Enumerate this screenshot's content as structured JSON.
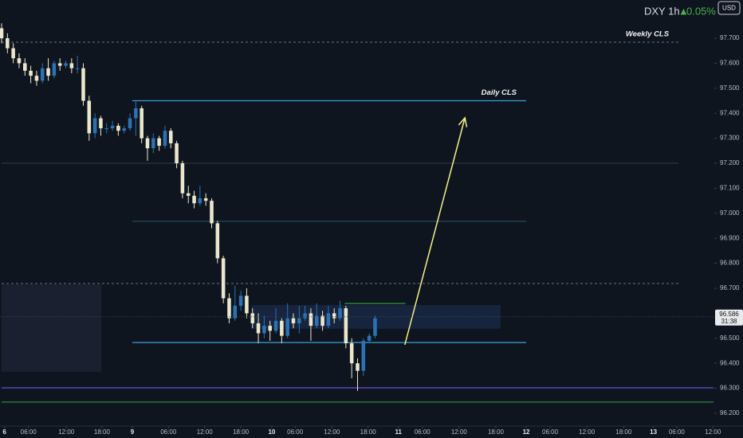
{
  "chart_data": {
    "type": "candlestick",
    "title": "DXY 1h",
    "change": "0.05%",
    "currency": "USD",
    "up_color": "#2b72b5",
    "down_color": "#ebe7cc",
    "grid": false,
    "xlim": [
      0,
      122
    ],
    "ylim": [
      96.149,
      97.853
    ],
    "yticks": [
      {
        "value": 96.2,
        "label": "96.200"
      },
      {
        "value": 96.3,
        "label": "96.300"
      },
      {
        "value": 96.4,
        "label": "96.400"
      },
      {
        "value": 96.5,
        "label": "96.500"
      },
      {
        "value": 96.7,
        "label": "96.700"
      },
      {
        "value": 96.8,
        "label": "96.800"
      },
      {
        "value": 96.9,
        "label": "96.900"
      },
      {
        "value": 97.0,
        "label": "97.000"
      },
      {
        "value": 97.1,
        "label": "97.100"
      },
      {
        "value": 97.2,
        "label": "97.200"
      },
      {
        "value": 97.3,
        "label": "97.300"
      },
      {
        "value": 97.4,
        "label": "97.400"
      },
      {
        "value": 97.5,
        "label": "97.500"
      },
      {
        "value": 97.6,
        "label": "97.600"
      },
      {
        "value": 97.7,
        "label": "97.700"
      }
    ],
    "xticks": [
      {
        "value": 0.5,
        "label": "6"
      },
      {
        "value": 4.6,
        "label": "06:00"
      },
      {
        "value": 11.1,
        "label": "12:00"
      },
      {
        "value": 17.2,
        "label": "18:00"
      },
      {
        "value": 22.4,
        "label": "9"
      },
      {
        "value": 28.6,
        "label": "06:00"
      },
      {
        "value": 34.8,
        "label": "12:00"
      },
      {
        "value": 41,
        "label": "18:00"
      },
      {
        "value": 46.3,
        "label": "10"
      },
      {
        "value": 50.3,
        "label": "06:00"
      },
      {
        "value": 56.6,
        "label": "12:00"
      },
      {
        "value": 62.8,
        "label": "18:00"
      },
      {
        "value": 68,
        "label": "11"
      },
      {
        "value": 72.1,
        "label": "06:00"
      },
      {
        "value": 78.4,
        "label": "12:00"
      },
      {
        "value": 84.7,
        "label": "18:00"
      },
      {
        "value": 89.9,
        "label": "12"
      },
      {
        "value": 94,
        "label": "06:00"
      },
      {
        "value": 100.3,
        "label": "12:00"
      },
      {
        "value": 106.6,
        "label": "18:00"
      },
      {
        "value": 111.7,
        "label": "13"
      },
      {
        "value": 115.7,
        "label": "06:00"
      },
      {
        "value": 121.9,
        "label": "12:00"
      }
    ],
    "x": [
      0,
      1,
      2,
      3,
      4,
      5,
      6,
      7,
      8,
      9,
      10,
      11,
      12,
      13,
      14,
      15,
      16,
      17,
      18,
      19,
      20,
      21,
      22,
      23,
      24,
      25,
      26,
      27,
      28,
      29,
      30,
      31,
      32,
      33,
      34,
      35,
      36,
      37,
      38,
      39,
      40,
      41,
      42,
      43,
      44,
      45,
      46,
      47,
      48,
      49,
      50,
      51,
      52,
      53,
      54,
      55,
      56,
      57,
      58,
      59,
      60,
      61,
      62,
      63,
      64
    ],
    "open": [
      97.74,
      97.7,
      97.66,
      97.62,
      97.6,
      97.57,
      97.55,
      97.53,
      97.58,
      97.55,
      97.6,
      97.59,
      97.6,
      97.58,
      97.58,
      97.45,
      97.32,
      97.38,
      97.34,
      97.34,
      97.35,
      97.33,
      97.34,
      97.38,
      97.42,
      97.3,
      97.26,
      97.3,
      97.27,
      97.33,
      97.28,
      97.2,
      97.08,
      97.07,
      97.04,
      97.06,
      97.05,
      96.96,
      96.82,
      96.66,
      96.58,
      96.63,
      96.67,
      96.6,
      96.56,
      96.52,
      96.55,
      96.53,
      96.57,
      96.51,
      96.58,
      96.56,
      96.58,
      96.6,
      96.55,
      96.59,
      96.55,
      96.6,
      96.58,
      96.62,
      96.48,
      96.4,
      96.37,
      96.49,
      96.51
    ],
    "high": [
      97.76,
      97.72,
      97.68,
      97.64,
      97.62,
      97.59,
      97.57,
      97.6,
      97.62,
      97.61,
      97.62,
      97.61,
      97.62,
      97.63,
      97.6,
      97.47,
      97.4,
      97.39,
      97.36,
      97.37,
      97.36,
      97.35,
      97.4,
      97.45,
      97.43,
      97.31,
      97.32,
      97.31,
      97.35,
      97.34,
      97.29,
      97.21,
      97.11,
      97.09,
      97.11,
      97.08,
      97.06,
      96.97,
      96.83,
      96.68,
      96.71,
      96.69,
      96.7,
      96.62,
      96.6,
      96.59,
      96.57,
      96.62,
      96.58,
      96.64,
      96.6,
      96.63,
      96.63,
      96.62,
      96.64,
      96.61,
      96.63,
      96.62,
      96.65,
      96.63,
      96.5,
      96.42,
      96.5,
      96.52,
      96.59
    ],
    "low": [
      97.68,
      97.64,
      97.6,
      97.58,
      97.55,
      97.52,
      97.51,
      97.52,
      97.53,
      97.54,
      97.57,
      97.58,
      97.56,
      97.56,
      97.43,
      97.29,
      97.3,
      97.31,
      97.32,
      97.33,
      97.31,
      97.32,
      97.33,
      97.31,
      97.28,
      97.21,
      97.24,
      97.25,
      97.26,
      97.26,
      97.18,
      97.06,
      97.04,
      97.02,
      97.03,
      97.03,
      96.94,
      96.8,
      96.64,
      96.56,
      96.57,
      96.61,
      96.58,
      96.54,
      96.48,
      96.5,
      96.49,
      96.52,
      96.48,
      96.5,
      96.54,
      96.52,
      96.57,
      96.49,
      96.54,
      96.53,
      96.54,
      96.56,
      96.57,
      96.46,
      96.34,
      96.29,
      96.35,
      96.48,
      96.5
    ],
    "close": [
      97.7,
      97.66,
      97.62,
      97.6,
      97.57,
      97.55,
      97.53,
      97.58,
      97.55,
      97.6,
      97.59,
      97.6,
      97.58,
      97.58,
      97.45,
      97.32,
      97.38,
      97.34,
      97.34,
      97.35,
      97.33,
      97.34,
      97.38,
      97.42,
      97.3,
      97.26,
      97.3,
      97.27,
      97.33,
      97.28,
      97.2,
      97.08,
      97.07,
      97.04,
      97.06,
      97.05,
      96.96,
      96.82,
      96.66,
      96.58,
      96.63,
      96.67,
      96.6,
      96.56,
      96.52,
      96.55,
      96.53,
      96.57,
      96.51,
      96.58,
      96.56,
      96.58,
      96.6,
      96.55,
      96.59,
      96.55,
      96.6,
      96.58,
      96.62,
      96.48,
      96.4,
      96.37,
      96.49,
      96.51,
      96.58
    ],
    "last_price": {
      "value": 96.586,
      "label": "96.586"
    },
    "countdown": "31:38",
    "zones": [
      {
        "x": [
          0,
          17.1
        ],
        "y": [
          96.366,
          96.716
        ],
        "color": "#1c2233"
      },
      {
        "x": [
          42.8,
          85.5
        ],
        "y": [
          96.538,
          96.633
        ],
        "color": "#172744"
      }
    ],
    "levels": [
      {
        "label": "Weekly CLS",
        "value": 97.684,
        "x": [
          0,
          116
        ],
        "color": "#6b7280",
        "dashed": true
      },
      {
        "label": "Daily CLS",
        "value": 97.45,
        "x": [
          22.4,
          89.9
        ],
        "color": "#3aa0d8",
        "dashed": false
      },
      {
        "value": 97.2,
        "x": [
          0,
          116
        ],
        "color": "#2a3442",
        "dashed": false
      },
      {
        "value": 96.968,
        "x": [
          22.4,
          89.9
        ],
        "color": "#1f4d58",
        "dashed": false
      },
      {
        "value": 96.719,
        "x": [
          0,
          116
        ],
        "color": "#6b7280",
        "dashed": true
      },
      {
        "value": 96.639,
        "x": [
          58.8,
          69.2
        ],
        "color": "#2e9a3a",
        "dashed": false
      },
      {
        "value": 96.483,
        "x": [
          22.4,
          89.9
        ],
        "color": "#3aa0d8",
        "dashed": false
      },
      {
        "value": 96.302,
        "x": [
          0,
          122
        ],
        "color": "#6a4fd8",
        "dashed": false
      },
      {
        "value": 96.245,
        "x": [
          0,
          122
        ],
        "color": "#2e8a3a",
        "dashed": false
      }
    ],
    "arrow": {
      "x": [
        69.1,
        79.4
      ],
      "y": [
        96.474,
        97.382
      ],
      "color": "#f3f08a"
    }
  }
}
